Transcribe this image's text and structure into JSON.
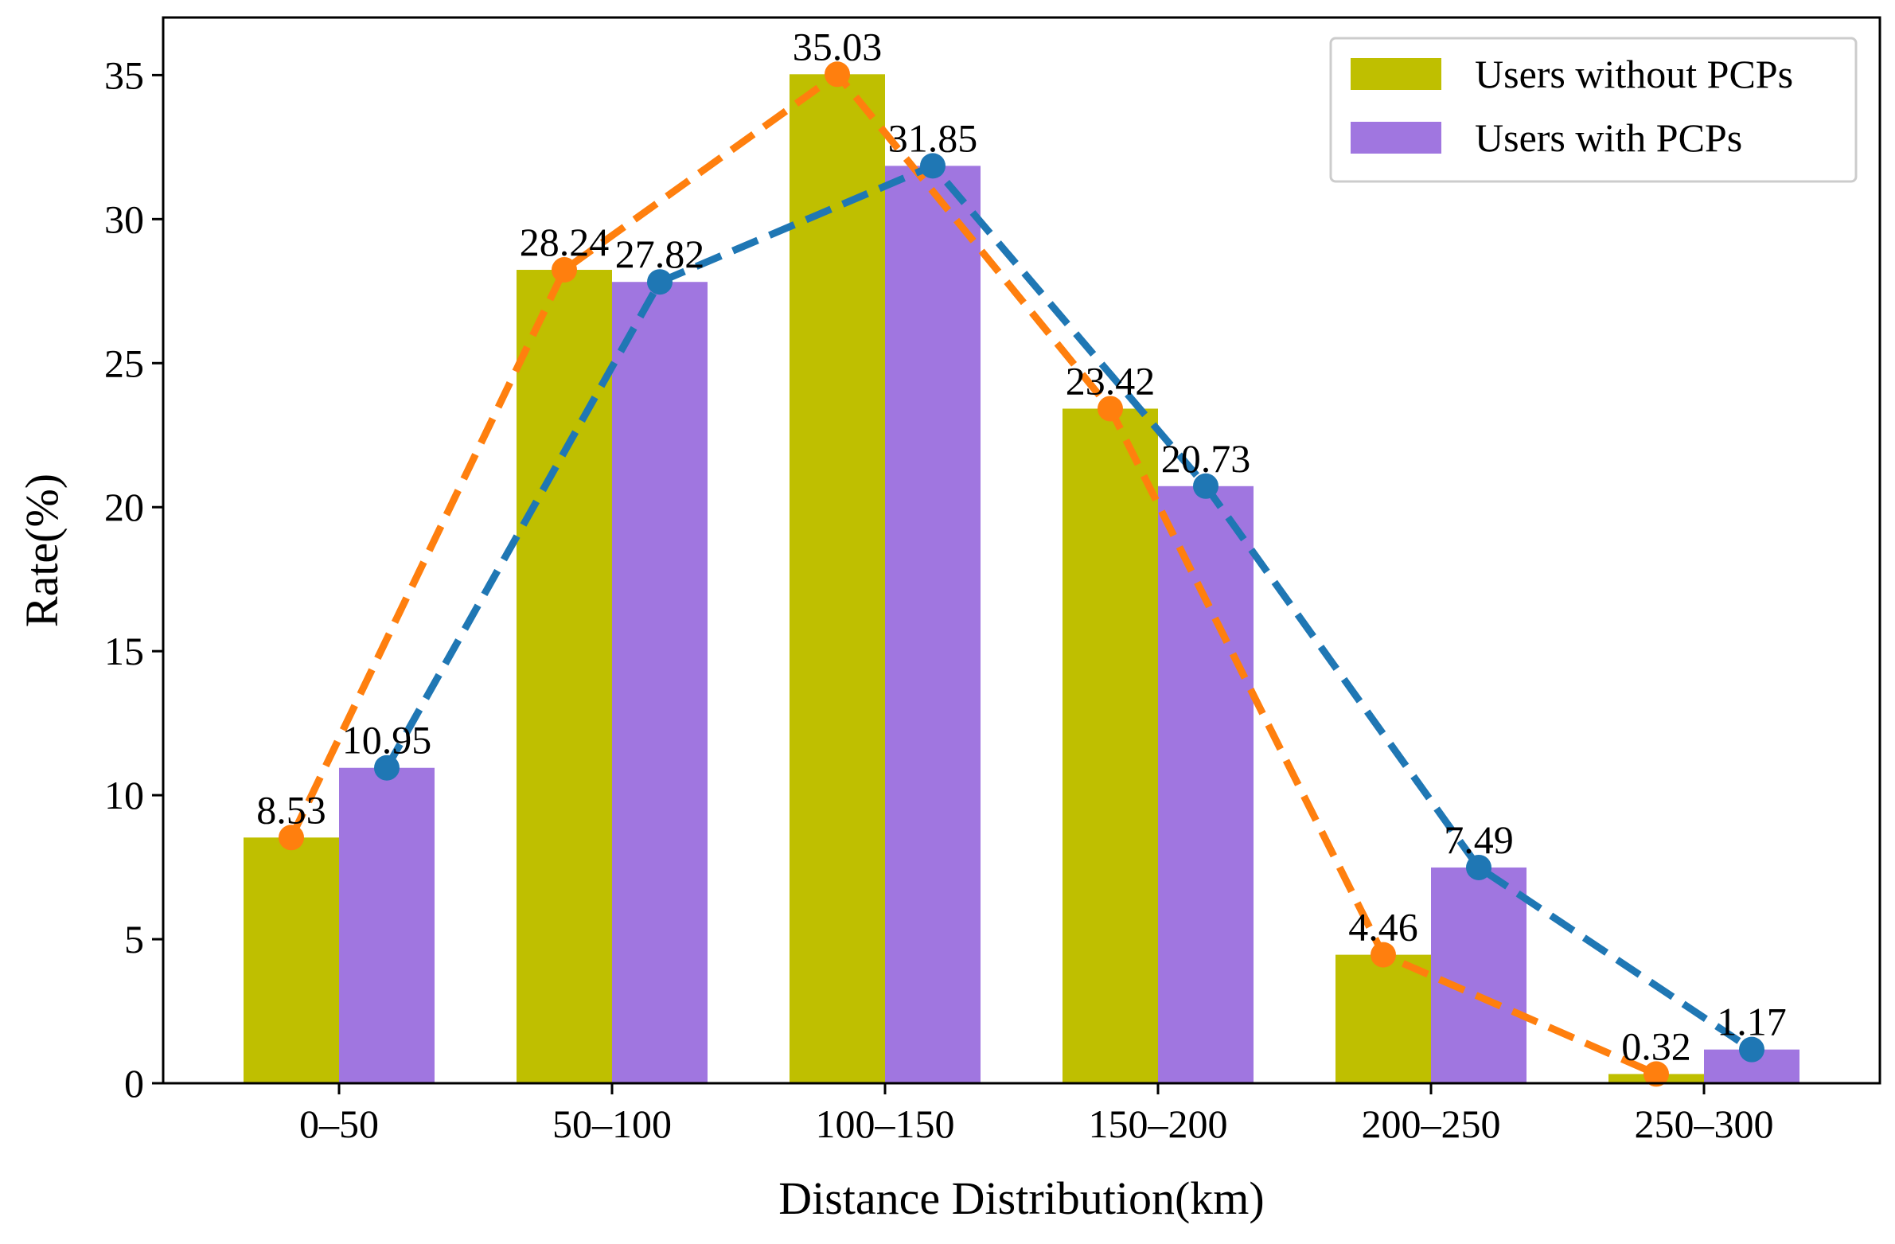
{
  "chart_data": {
    "type": "bar",
    "title": "",
    "xlabel": "Distance Distribution(km)",
    "ylabel": "Rate(%)",
    "categories": [
      "0–50",
      "50–100",
      "100–150",
      "150–200",
      "200–250",
      "250–300"
    ],
    "ylim": [
      0,
      37
    ],
    "yticks": [
      0,
      5,
      10,
      15,
      20,
      25,
      30,
      35
    ],
    "ytick_labels": [
      "0",
      "5",
      "10",
      "15",
      "20",
      "25",
      "30",
      "35"
    ],
    "grid": false,
    "legend_position": "top-right",
    "series": [
      {
        "name": "Users without PCPs",
        "values": [
          8.53,
          28.24,
          35.03,
          23.42,
          4.46,
          0.32
        ],
        "value_labels": [
          "8.53",
          "28.24",
          "35.03",
          "23.42",
          "4.46",
          "0.32"
        ],
        "bar_color": "#bfbf00",
        "line_color": "#ff7f0e",
        "line_style": "dashed"
      },
      {
        "name": "Users with PCPs",
        "values": [
          10.95,
          27.82,
          31.85,
          20.73,
          7.49,
          1.17
        ],
        "value_labels": [
          "10.95",
          "27.82",
          "31.85",
          "20.73",
          "7.49",
          "1.17"
        ],
        "bar_color": "#a076e0",
        "line_color": "#1f77b4",
        "line_style": "dashed"
      }
    ]
  }
}
